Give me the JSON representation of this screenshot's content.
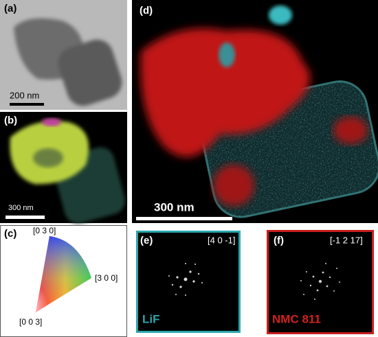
{
  "panels": [
    {
      "label": "(a)",
      "scale_bar": "200 nm"
    },
    {
      "label": "(b)",
      "scale_bar": "300 nm"
    },
    {
      "label": "(c)",
      "directions": [
        "[0 3 0]",
        "[3 0 0]",
        "[0 0 3]"
      ]
    },
    {
      "label": "(d)",
      "scale_bar": "300 nm"
    },
    {
      "label": "(e)",
      "zone_axis": "[4 0 -1]",
      "phase": "LiF"
    },
    {
      "label": "(f)",
      "zone_axis": "[-1 2 17]",
      "phase": "NMC 811"
    }
  ]
}
